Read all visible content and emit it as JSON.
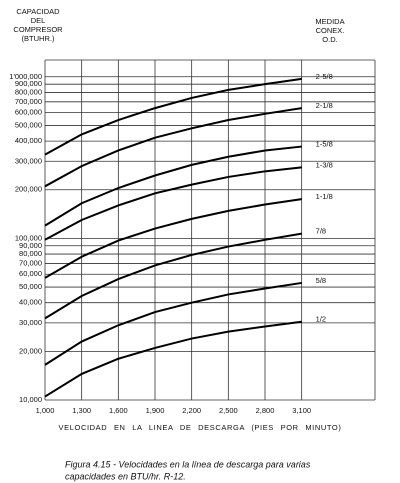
{
  "chart_data": {
    "type": "line",
    "y_label_lines": [
      "CAPACIDAD",
      "DEL",
      "COMPRESOR",
      "(BTUHR.)"
    ],
    "legend_title_lines": [
      "MEDIDA",
      "CONEX.",
      "O.D."
    ],
    "x_label": "VELOCIDAD EN LA LINEA DE DESCARGA (PIES POR MINUTO)",
    "caption_lines": [
      "Figura 4.15 - Velocidades en la línea de descarga para varias",
      "capacidades en BTU/hr.  R-12."
    ],
    "log_y": true,
    "grid": true,
    "x": [
      1000,
      1300,
      1600,
      1900,
      2200,
      2500,
      2800,
      3100
    ],
    "xlim": [
      1000,
      3700
    ],
    "xticks": [
      {
        "value": 1000,
        "label": "1,000"
      },
      {
        "value": 1300,
        "label": "1,300"
      },
      {
        "value": 1600,
        "label": "1,600"
      },
      {
        "value": 1900,
        "label": "1,900"
      },
      {
        "value": 2200,
        "label": "2,200"
      },
      {
        "value": 2500,
        "label": "2,500"
      },
      {
        "value": 2800,
        "label": "2,800"
      },
      {
        "value": 3100,
        "label": "3,100"
      }
    ],
    "ylim": [
      10000,
      1270000
    ],
    "yticks": [
      {
        "value": 1000000,
        "label": "1'000,000"
      },
      {
        "value": 900000,
        "label": "900,000"
      },
      {
        "value": 800000,
        "label": "800,000"
      },
      {
        "value": 700000,
        "label": "700,000"
      },
      {
        "value": 600000,
        "label": "600,000"
      },
      {
        "value": 500000,
        "label": "500,000"
      },
      {
        "value": 400000,
        "label": "400,000"
      },
      {
        "value": 300000,
        "label": "300,000"
      },
      {
        "value": 200000,
        "label": "200,000"
      },
      {
        "value": 100000,
        "label": "100,000"
      },
      {
        "value": 90000,
        "label": "90,000"
      },
      {
        "value": 80000,
        "label": "80,000"
      },
      {
        "value": 70000,
        "label": "70,000"
      },
      {
        "value": 60000,
        "label": "60,000"
      },
      {
        "value": 50000,
        "label": "50,000"
      },
      {
        "value": 40000,
        "label": "40,000"
      },
      {
        "value": 30000,
        "label": "30,000"
      },
      {
        "value": 20000,
        "label": "20,000"
      },
      {
        "value": 10000,
        "label": "10,000"
      }
    ],
    "series": [
      {
        "name": "2-5/8",
        "color": "#000000",
        "values": [
          330000,
          440000,
          540000,
          640000,
          740000,
          830000,
          900000,
          970000
        ]
      },
      {
        "name": "2-1/8",
        "color": "#000000",
        "values": [
          210000,
          280000,
          350000,
          420000,
          480000,
          540000,
          590000,
          640000
        ]
      },
      {
        "name": "1-5/8",
        "color": "#000000",
        "values": [
          120000,
          165000,
          205000,
          245000,
          285000,
          320000,
          350000,
          370000
        ]
      },
      {
        "name": "1-3/8",
        "color": "#000000",
        "values": [
          98000,
          130000,
          160000,
          190000,
          215000,
          240000,
          260000,
          275000
        ]
      },
      {
        "name": "1-1/8",
        "color": "#000000",
        "values": [
          57000,
          77000,
          97000,
          115000,
          132000,
          148000,
          162000,
          175000
        ]
      },
      {
        "name": "7/8",
        "color": "#000000",
        "values": [
          32000,
          44000,
          56000,
          68000,
          79000,
          89000,
          98000,
          107000
        ]
      },
      {
        "name": "5/8",
        "color": "#000000",
        "values": [
          16500,
          23000,
          29000,
          35000,
          40000,
          45000,
          49000,
          53000
        ]
      },
      {
        "name": "1/2",
        "color": "#000000",
        "values": [
          10500,
          14500,
          18000,
          21000,
          24000,
          26500,
          28500,
          30500
        ]
      }
    ]
  }
}
